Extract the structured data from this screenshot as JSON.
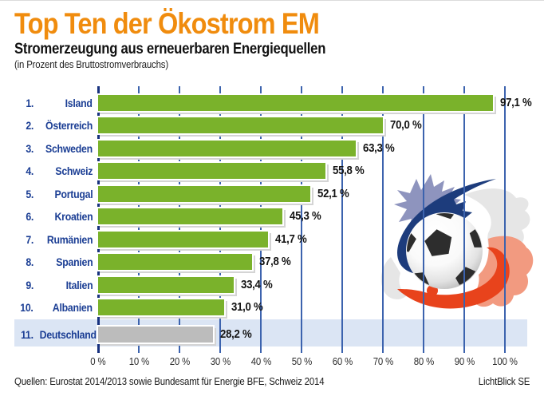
{
  "header": {
    "title": "Top Ten der Ökostrom EM",
    "subtitle": "Stromerzeugung aus erneuerbaren Energiequellen",
    "note": "(in Prozent des Bruttostromverbrauchs)"
  },
  "chart_data": {
    "type": "bar",
    "orientation": "horizontal",
    "title": "Top Ten der Ökostrom EM",
    "subtitle": "Stromerzeugung aus erneuerbaren Energiequellen (in Prozent des Bruttostromverbrauchs)",
    "unit": "%",
    "xlim": [
      0,
      100
    ],
    "grid": true,
    "x_tick_values": [
      0,
      10,
      20,
      30,
      40,
      50,
      60,
      70,
      80,
      90,
      100
    ],
    "x_tick_labels": [
      "0 %",
      "10 %",
      "20 %",
      "30 %",
      "40 %",
      "50 %",
      "60 %",
      "70 %",
      "80 %",
      "90 %",
      "100 %"
    ],
    "rows": [
      {
        "rank": "1.",
        "country": "Island",
        "value": 97.1,
        "label": "97,1 %",
        "highlight": false
      },
      {
        "rank": "2.",
        "country": "Österreich",
        "value": 70.0,
        "label": "70,0 %",
        "highlight": false
      },
      {
        "rank": "3.",
        "country": "Schweden",
        "value": 63.3,
        "label": "63,3 %",
        "highlight": false
      },
      {
        "rank": "4.",
        "country": "Schweiz",
        "value": 55.8,
        "label": "55,8 %",
        "highlight": false
      },
      {
        "rank": "5.",
        "country": "Portugal",
        "value": 52.1,
        "label": "52,1 %",
        "highlight": false
      },
      {
        "rank": "6.",
        "country": "Kroatien",
        "value": 45.3,
        "label": "45,3 %",
        "highlight": false
      },
      {
        "rank": "7.",
        "country": "Rumänien",
        "value": 41.7,
        "label": "41,7 %",
        "highlight": false
      },
      {
        "rank": "8.",
        "country": "Spanien",
        "value": 37.8,
        "label": "37,8 %",
        "highlight": false
      },
      {
        "rank": "9.",
        "country": "Italien",
        "value": 33.4,
        "label": "33,4 %",
        "highlight": false
      },
      {
        "rank": "10.",
        "country": "Albanien",
        "value": 31.0,
        "label": "31,0 %",
        "highlight": false
      },
      {
        "rank": "11.",
        "country": "Deutschland",
        "value": 28.2,
        "label": "28,2 %",
        "highlight": true
      }
    ],
    "colors": {
      "bar": "#7ab22b",
      "highlight_bar": "#bcbcbc",
      "highlight_band": "#dbe5f4",
      "gridline": "#3c63ae",
      "axis_line": "#17317f",
      "category_text": "#1b3e94",
      "value_text": "#141414",
      "title_text": "#f08c0e"
    }
  },
  "footer": {
    "sources": "Quellen: Eurostat 2014/2013 sowie Bundesamt für Energie BFE, Schweiz 2014",
    "brand": "LichtBlick SE"
  },
  "decor": {
    "name": "soccer-ball-with-paint-splashes",
    "colors": {
      "lavender": "#8e94be",
      "navy": "#1d3c7c",
      "gray": "#e6e6e6",
      "red": "#e8431c",
      "salmon": "#f29a80",
      "ball_dark": "#2d2d2d"
    }
  }
}
